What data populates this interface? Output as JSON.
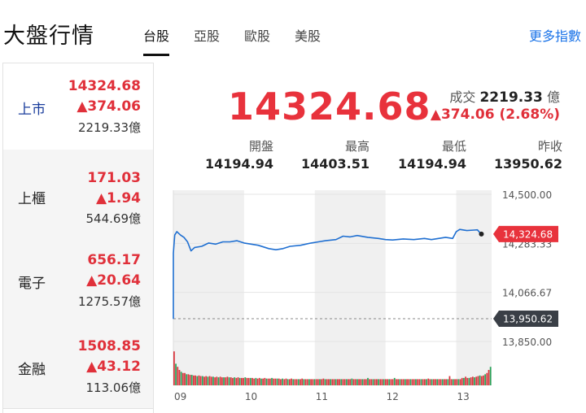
{
  "header": {
    "title": "大盤行情",
    "tabs": [
      {
        "label": "台股",
        "active": true
      },
      {
        "label": "亞股",
        "active": false
      },
      {
        "label": "歐股",
        "active": false
      },
      {
        "label": "美股",
        "active": false
      }
    ],
    "more": "更多指數"
  },
  "sidebar": {
    "items": [
      {
        "name": "上市",
        "price": "14324.68",
        "change": "▲374.06",
        "volume": "2219.33億",
        "active": true
      },
      {
        "name": "上櫃",
        "price": "171.03",
        "change": "▲1.94",
        "volume": "544.69億",
        "active": false
      },
      {
        "name": "電子",
        "price": "656.17",
        "change": "▲20.64",
        "volume": "1275.57億",
        "active": false
      },
      {
        "name": "金融",
        "price": "1508.85",
        "change": "▲43.12",
        "volume": "113.06億",
        "active": false
      }
    ]
  },
  "quote": {
    "price": "14324.68",
    "volume_label": "成交",
    "volume_value": "2219.33",
    "volume_unit": "億",
    "change": "▲374.06 (2.68%)"
  },
  "stats": [
    {
      "label": "開盤",
      "value": "14194.94"
    },
    {
      "label": "最高",
      "value": "14403.51"
    },
    {
      "label": "最低",
      "value": "14194.94"
    },
    {
      "label": "昨收",
      "value": "13950.62"
    }
  ],
  "colors": {
    "up": "#e8323c",
    "line": "#1f6fd1",
    "link": "#1a73e8",
    "badge_gray": "#3a3f46"
  },
  "chart_data": {
    "type": "line",
    "x_ticks": [
      "09",
      "10",
      "11",
      "12",
      "13"
    ],
    "y_ticks": [
      "14,500.00",
      "14,283.33",
      "14,066.67",
      "13,850.00"
    ],
    "ylim": [
      13850,
      14500
    ],
    "xlim": [
      9,
      13.5
    ],
    "current_label": "14,324.68",
    "prev_close_label": "13,950.62",
    "prev_close": 13950.62,
    "current": 14324.68,
    "series": [
      {
        "values": [
          [
            9.0,
            13950
          ],
          [
            9.0,
            14240
          ],
          [
            9.02,
            14320
          ],
          [
            9.05,
            14335
          ],
          [
            9.1,
            14320
          ],
          [
            9.15,
            14310
          ],
          [
            9.2,
            14290
          ],
          [
            9.25,
            14250
          ],
          [
            9.3,
            14265
          ],
          [
            9.4,
            14270
          ],
          [
            9.5,
            14285
          ],
          [
            9.6,
            14280
          ],
          [
            9.7,
            14290
          ],
          [
            9.8,
            14290
          ],
          [
            9.9,
            14295
          ],
          [
            10.0,
            14285
          ],
          [
            10.1,
            14280
          ],
          [
            10.2,
            14275
          ],
          [
            10.35,
            14260
          ],
          [
            10.45,
            14255
          ],
          [
            10.55,
            14260
          ],
          [
            10.65,
            14270
          ],
          [
            10.8,
            14275
          ],
          [
            10.95,
            14285
          ],
          [
            11.05,
            14290
          ],
          [
            11.15,
            14295
          ],
          [
            11.3,
            14300
          ],
          [
            11.4,
            14315
          ],
          [
            11.5,
            14312
          ],
          [
            11.6,
            14318
          ],
          [
            11.75,
            14310
          ],
          [
            11.9,
            14305
          ],
          [
            12.0,
            14300
          ],
          [
            12.1,
            14298
          ],
          [
            12.25,
            14303
          ],
          [
            12.4,
            14300
          ],
          [
            12.55,
            14305
          ],
          [
            12.65,
            14300
          ],
          [
            12.75,
            14305
          ],
          [
            12.85,
            14310
          ],
          [
            12.95,
            14305
          ],
          [
            13.0,
            14335
          ],
          [
            13.05,
            14345
          ],
          [
            13.15,
            14340
          ],
          [
            13.25,
            14342
          ],
          [
            13.3,
            14343
          ],
          [
            13.35,
            14324.68
          ]
        ]
      }
    ],
    "volume_bars": [
      0.55,
      0.35,
      0.3,
      0.25,
      0.22,
      0.2,
      0.2,
      0.18,
      0.18,
      0.17,
      0.17,
      0.16,
      0.16,
      0.15,
      0.16,
      0.15,
      0.15,
      0.14,
      0.15,
      0.14,
      0.15,
      0.14,
      0.14,
      0.13,
      0.14,
      0.13,
      0.14,
      0.13,
      0.13,
      0.13,
      0.14,
      0.13,
      0.13,
      0.12,
      0.13,
      0.12,
      0.13,
      0.12,
      0.12,
      0.12,
      0.13,
      0.12,
      0.12,
      0.12,
      0.12,
      0.11,
      0.12,
      0.11,
      0.12,
      0.11,
      0.11,
      0.12,
      0.11,
      0.11,
      0.11,
      0.12,
      0.11,
      0.11,
      0.11,
      0.11,
      0.1,
      0.11,
      0.1,
      0.11,
      0.1,
      0.1,
      0.11,
      0.1,
      0.1,
      0.1,
      0.1,
      0.1,
      0.11,
      0.1,
      0.1,
      0.1,
      0.1,
      0.1,
      0.1,
      0.1,
      0.1,
      0.1,
      0.1,
      0.1,
      0.11,
      0.1,
      0.1,
      0.1,
      0.1,
      0.1,
      0.1,
      0.1,
      0.1,
      0.1,
      0.1,
      0.1,
      0.1,
      0.1,
      0.1,
      0.1,
      0.11,
      0.1,
      0.1,
      0.1,
      0.1,
      0.1,
      0.1,
      0.1,
      0.1,
      0.12,
      0.1,
      0.1,
      0.1,
      0.1,
      0.1,
      0.1,
      0.1,
      0.1,
      0.1,
      0.1,
      0.1,
      0.1,
      0.1,
      0.1,
      0.12,
      0.1,
      0.1,
      0.1,
      0.1,
      0.1,
      0.1,
      0.1,
      0.1,
      0.1,
      0.1,
      0.1,
      0.1,
      0.1,
      0.1,
      0.1,
      0.1,
      0.1,
      0.1,
      0.11,
      0.1,
      0.1,
      0.1,
      0.1,
      0.1,
      0.1,
      0.1,
      0.1,
      0.1,
      0.1,
      0.1,
      0.15,
      0.1,
      0.1,
      0.1,
      0.1,
      0.1,
      0.1,
      0.12,
      0.12,
      0.14,
      0.12,
      0.12,
      0.13,
      0.14,
      0.13,
      0.14,
      0.15,
      0.16,
      0.15,
      0.16,
      0.18,
      0.2,
      0.25,
      0.3
    ],
    "volume_colors_note": "mostly red/green alternating"
  }
}
